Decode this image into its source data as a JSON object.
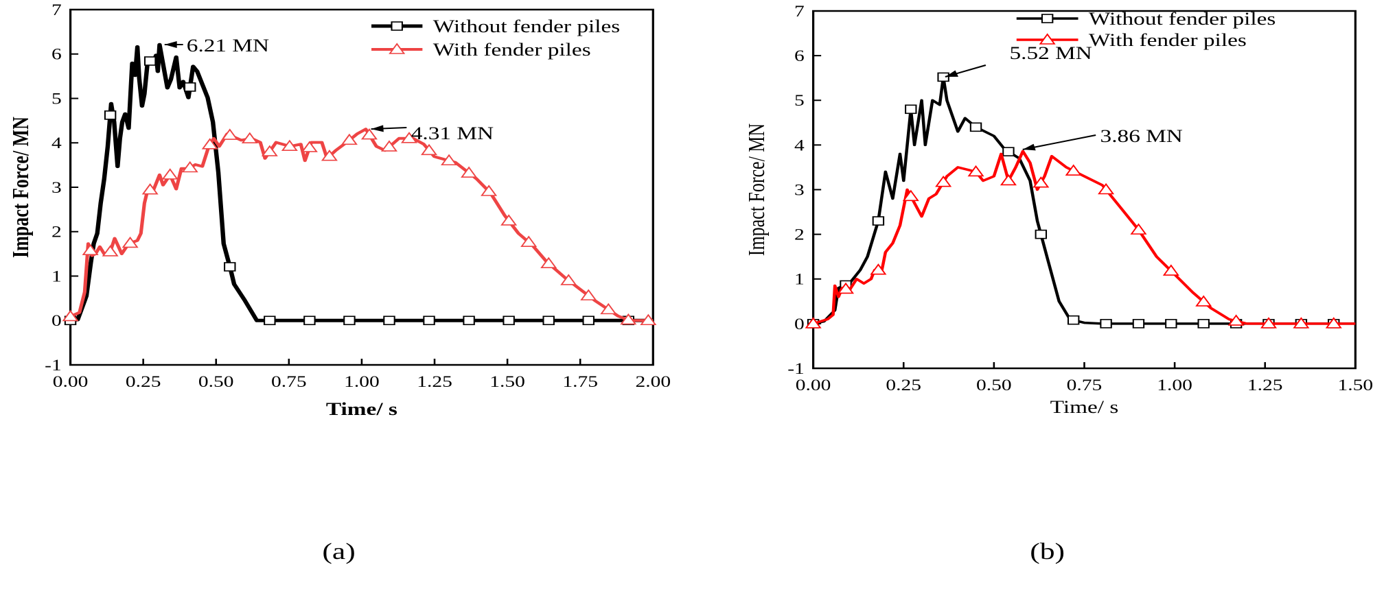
{
  "chart_data": [
    {
      "id": "a",
      "type": "line",
      "caption": "(a)",
      "xlabel": "Time/ s",
      "ylabel": "Impact Force/ MN",
      "bold_labels": true,
      "xlim": [
        0,
        2.0
      ],
      "ylim": [
        -1,
        7
      ],
      "xticks": [
        "0.00",
        "0.25",
        "0.50",
        "0.75",
        "1.00",
        "1.25",
        "1.50",
        "1.75",
        "2.00"
      ],
      "xtick_values": [
        0,
        0.25,
        0.5,
        0.75,
        1.0,
        1.25,
        1.5,
        1.75,
        2.0
      ],
      "yticks": [
        "-1",
        "0",
        "1",
        "2",
        "3",
        "4",
        "5",
        "6",
        "7"
      ],
      "ytick_values": [
        -1,
        0,
        1,
        2,
        3,
        4,
        5,
        6,
        7
      ],
      "legend_position": "top-right",
      "series": [
        {
          "name": "Without fender piles",
          "color": "#000000",
          "marker": "square",
          "marker_interval": 0.1368,
          "x": [
            0,
            0.025,
            0.055,
            0.07,
            0.08,
            0.092,
            0.104,
            0.116,
            0.128,
            0.14,
            0.15,
            0.162,
            0.17,
            0.178,
            0.188,
            0.2,
            0.212,
            0.222,
            0.23,
            0.236,
            0.246,
            0.254,
            0.266,
            0.284,
            0.294,
            0.3,
            0.306,
            0.315,
            0.333,
            0.345,
            0.363,
            0.375,
            0.387,
            0.405,
            0.421,
            0.435,
            0.471,
            0.489,
            0.508,
            0.526,
            0.55,
            0.562,
            0.598,
            0.64,
            2.0
          ],
          "y": [
            0,
            0.02,
            0.55,
            1.3,
            1.73,
            1.96,
            2.64,
            3.19,
            3.92,
            4.88,
            4.47,
            3.47,
            4.1,
            4.47,
            4.65,
            4.33,
            5.79,
            5.52,
            6.16,
            5.47,
            4.83,
            5.1,
            5.88,
            5.79,
            5.97,
            5.61,
            6.21,
            5.88,
            5.24,
            5.43,
            5.93,
            5.24,
            5.38,
            5.02,
            5.72,
            5.61,
            5.02,
            4.47,
            3.33,
            1.73,
            1.14,
            0.82,
            0.46,
            0,
            0
          ]
        },
        {
          "name": "With fender piles",
          "color": "#ee4444",
          "marker": "triangle",
          "marker_interval": 0.0684,
          "x": [
            0,
            0.031,
            0.049,
            0.061,
            0.074,
            0.086,
            0.101,
            0.116,
            0.137,
            0.152,
            0.176,
            0.2,
            0.23,
            0.242,
            0.254,
            0.266,
            0.284,
            0.306,
            0.318,
            0.342,
            0.363,
            0.381,
            0.405,
            0.429,
            0.453,
            0.475,
            0.492,
            0.511,
            0.538,
            0.586,
            0.622,
            0.652,
            0.668,
            0.706,
            0.754,
            0.791,
            0.805,
            0.827,
            0.863,
            0.881,
            0.911,
            0.948,
            0.984,
            1.014,
            1.05,
            1.08,
            1.128,
            1.176,
            1.213,
            1.249,
            1.321,
            1.394,
            1.442,
            1.49,
            1.538,
            1.586,
            1.635,
            1.7,
            1.8,
            1.88,
            1.92,
            2.0
          ],
          "y": [
            0.09,
            0.18,
            0.64,
            1.73,
            1.46,
            1.5,
            1.66,
            1.5,
            1.55,
            1.85,
            1.5,
            1.73,
            1.8,
            1.96,
            2.64,
            2.96,
            2.92,
            3.28,
            3.05,
            3.28,
            2.96,
            3.42,
            3.42,
            3.51,
            3.47,
            3.92,
            4.1,
            3.92,
            4.2,
            4.06,
            4.1,
            4.01,
            3.65,
            4.01,
            3.92,
            3.97,
            3.6,
            4.01,
            4.01,
            3.65,
            3.83,
            4.01,
            4.2,
            4.31,
            3.92,
            3.83,
            4.1,
            4.1,
            3.97,
            3.69,
            3.56,
            3.19,
            2.87,
            2.37,
            1.96,
            1.69,
            1.32,
            0.95,
            0.45,
            0.1,
            0,
            0
          ]
        }
      ],
      "annotations": [
        {
          "text": "6.21 MN",
          "x": 0.306,
          "y": 6.21
        },
        {
          "text": "4.31 MN",
          "x": 1.014,
          "y": 4.31
        }
      ]
    },
    {
      "id": "b",
      "type": "line",
      "caption": "(b)",
      "xlabel": "Time/ s",
      "ylabel": "Impact Force/ MN",
      "bold_labels": false,
      "xlim": [
        0,
        1.5
      ],
      "ylim": [
        -1,
        7
      ],
      "xticks": [
        "0.00",
        "0.25",
        "0.50",
        "0.75",
        "1.00",
        "1.25",
        "1.50"
      ],
      "xtick_values": [
        0,
        0.25,
        0.5,
        0.75,
        1.0,
        1.25,
        1.5
      ],
      "yticks": [
        "-1",
        "0",
        "1",
        "2",
        "3",
        "4",
        "5",
        "6",
        "7"
      ],
      "ytick_values": [
        -1,
        0,
        1,
        2,
        3,
        4,
        5,
        6,
        7
      ],
      "legend_position": "top-right",
      "series": [
        {
          "name": "Without fender piles",
          "color": "#000000",
          "marker": "square",
          "marker_interval": 0.09,
          "x": [
            0,
            0.03,
            0.06,
            0.07,
            0.1,
            0.13,
            0.15,
            0.18,
            0.2,
            0.22,
            0.24,
            0.25,
            0.27,
            0.28,
            0.3,
            0.31,
            0.33,
            0.35,
            0.36,
            0.37,
            0.4,
            0.42,
            0.45,
            0.5,
            0.53,
            0.57,
            0.6,
            0.62,
            0.63,
            0.65,
            0.68,
            0.71,
            0.75,
            0.8,
            1.5
          ],
          "y": [
            0,
            0.05,
            0.3,
            0.8,
            0.9,
            1.2,
            1.5,
            2.3,
            3.4,
            2.8,
            3.8,
            3.2,
            4.8,
            4.0,
            5.0,
            4.0,
            5.0,
            4.9,
            5.52,
            5.0,
            4.3,
            4.6,
            4.4,
            4.2,
            3.9,
            3.7,
            3.2,
            2.3,
            2.0,
            1.4,
            0.5,
            0.1,
            0.02,
            0,
            0
          ]
        },
        {
          "name": "With fender piles",
          "color": "#ff0000",
          "marker": "triangle",
          "marker_interval": 0.09,
          "x": [
            0,
            0.04,
            0.055,
            0.06,
            0.07,
            0.08,
            0.1,
            0.12,
            0.14,
            0.16,
            0.17,
            0.19,
            0.2,
            0.22,
            0.24,
            0.26,
            0.28,
            0.3,
            0.32,
            0.34,
            0.37,
            0.4,
            0.45,
            0.47,
            0.5,
            0.52,
            0.54,
            0.56,
            0.58,
            0.6,
            0.62,
            0.64,
            0.66,
            0.7,
            0.75,
            0.8,
            0.85,
            0.9,
            0.95,
            1.0,
            1.05,
            1.1,
            1.15,
            1.2,
            1.5
          ],
          "y": [
            0,
            0.1,
            0.2,
            0.85,
            0.6,
            0.8,
            0.75,
            1.0,
            0.9,
            1.0,
            1.2,
            1.2,
            1.6,
            1.8,
            2.2,
            3.0,
            2.7,
            2.4,
            2.8,
            2.9,
            3.3,
            3.5,
            3.4,
            3.2,
            3.3,
            3.8,
            3.2,
            3.5,
            3.86,
            3.6,
            3.0,
            3.3,
            3.75,
            3.5,
            3.3,
            3.1,
            2.6,
            2.1,
            1.5,
            1.1,
            0.7,
            0.35,
            0.1,
            0,
            0
          ]
        }
      ],
      "annotations": [
        {
          "text": "5.52 MN",
          "x": 0.36,
          "y": 5.52
        },
        {
          "text": "3.86 MN",
          "x": 0.58,
          "y": 3.86
        }
      ]
    }
  ]
}
